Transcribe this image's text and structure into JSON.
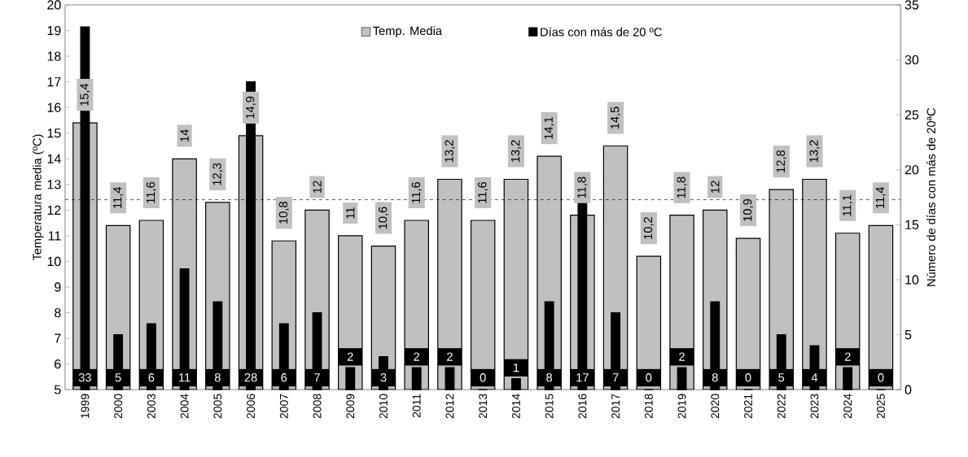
{
  "chart_data": {
    "type": "bar",
    "ylabel": "Temperatura media (ºC)",
    "y2label": "Número de días con más de 20ªC",
    "categories": [
      "1999",
      "2000",
      "2003",
      "2004",
      "2005",
      "2006",
      "2007",
      "2008",
      "2009",
      "2010",
      "2011",
      "2012",
      "2013",
      "2014",
      "2015",
      "2016",
      "2017",
      "2018",
      "2019",
      "2020",
      "2021",
      "2022",
      "2023",
      "2024",
      "2025"
    ],
    "series": [
      {
        "name": "Temp. Media",
        "color": "#c0c0c0",
        "values": [
          15.4,
          11.4,
          11.6,
          14,
          12.3,
          14.9,
          10.8,
          12,
          11,
          10.6,
          11.6,
          13.2,
          11.6,
          13.2,
          14.1,
          11.8,
          14.5,
          10.2,
          11.8,
          12,
          10.9,
          12.8,
          13.2,
          11.1,
          11.4
        ],
        "value_labels": [
          "15,4",
          "11,4",
          "11,6",
          "14",
          "12,3",
          "14,9",
          "10,8",
          "12",
          "11",
          "10,6",
          "11,6",
          "13,2",
          "11,6",
          "13,2",
          "14,1",
          "11,8",
          "14,5",
          "10,2",
          "11,8",
          "12",
          "10,9",
          "12,8",
          "13,2",
          "11,1",
          "11,4"
        ]
      },
      {
        "name": "Días con más de 20 ºC",
        "color": "#000000",
        "axis": "y2",
        "values": [
          33,
          5,
          6,
          11,
          8,
          28,
          6,
          7,
          2,
          3,
          2,
          2,
          0,
          1,
          8,
          17,
          7,
          0,
          2,
          8,
          0,
          5,
          4,
          2,
          0
        ],
        "value_labels": [
          "33",
          "5",
          "6",
          "11",
          "8",
          "28",
          "6",
          "7",
          "2",
          "3",
          "2",
          "2",
          "0",
          "1",
          "8",
          "17",
          "7",
          "0",
          "2",
          "8",
          "0",
          "5",
          "4",
          "2",
          "0"
        ]
      }
    ],
    "ylim": [
      5,
      20
    ],
    "yticks": [
      5,
      6,
      7,
      8,
      9,
      10,
      11,
      12,
      13,
      14,
      15,
      16,
      17,
      18,
      19,
      20
    ],
    "y2lim": [
      0,
      35
    ],
    "y2ticks": [
      0,
      5,
      10,
      15,
      20,
      25,
      30,
      35
    ],
    "ref_lines": [
      {
        "axis": "y",
        "value": 12.4,
        "color": "#000000",
        "line_style": "dashed"
      }
    ],
    "legend": "top"
  }
}
